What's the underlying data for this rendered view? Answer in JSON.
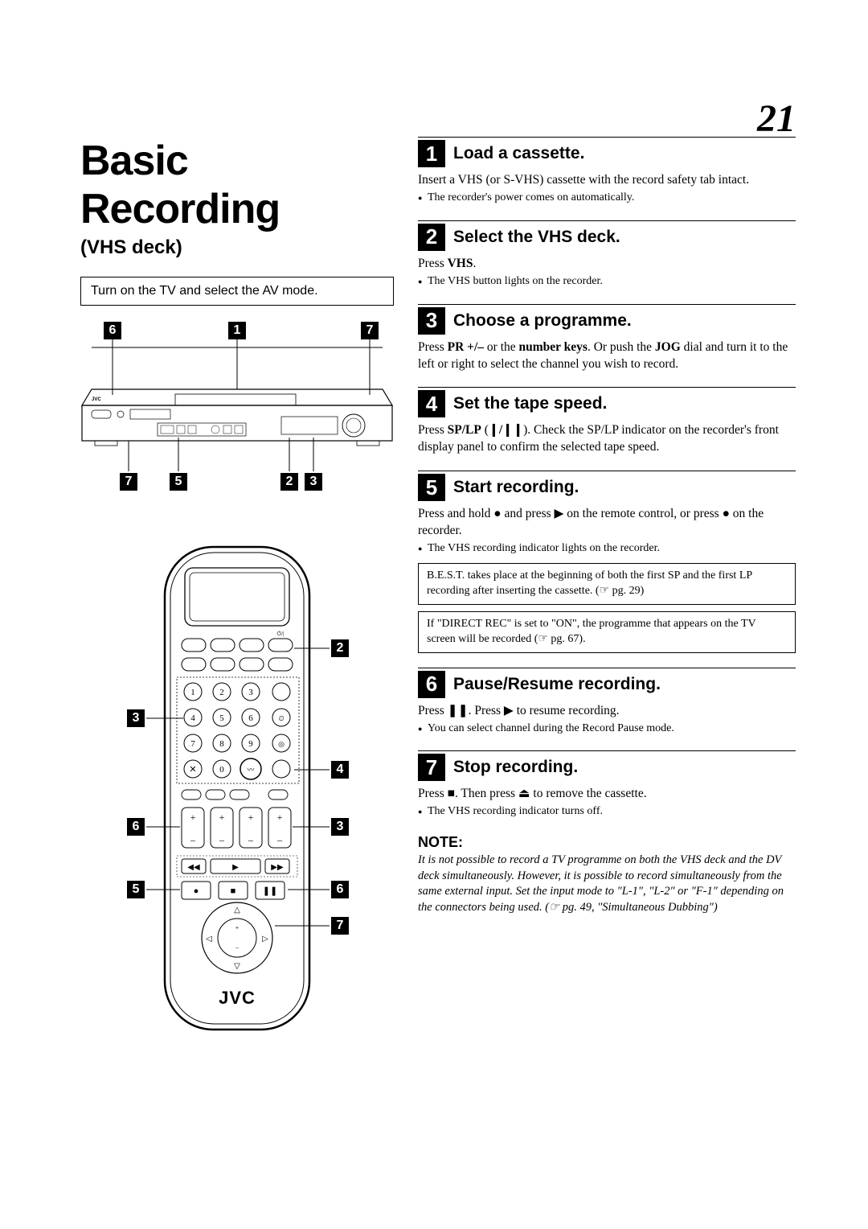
{
  "page_number": "21",
  "title": "Basic Recording",
  "subtitle": "(VHS deck)",
  "instruction_box": "Turn on the TV and select the AV mode.",
  "device_callouts_top": [
    "6",
    "1",
    "7"
  ],
  "device_callouts_bottom": [
    "7",
    "5",
    "2",
    "3"
  ],
  "remote_callouts_left": [
    "3",
    "6",
    "5"
  ],
  "remote_callouts_right": [
    "2",
    "4",
    "3",
    "6",
    "7"
  ],
  "brand_logo": "JVC",
  "steps": [
    {
      "num": "1",
      "title": "Load a cassette.",
      "body_html": "Insert a VHS (or S-VHS) cassette with the record safety tab intact.",
      "bullets": [
        "The recorder's power comes on automatically."
      ]
    },
    {
      "num": "2",
      "title": "Select the VHS deck.",
      "body_html": "Press <b>VHS</b>.",
      "bullets": [
        "The VHS button lights on the recorder."
      ]
    },
    {
      "num": "3",
      "title": "Choose a programme.",
      "body_html": "Press <b>PR +/–</b> or the <b>number keys</b>. Or push the <b>JOG</b> dial and turn it to the left or right to select the channel you wish to record.",
      "bullets": []
    },
    {
      "num": "4",
      "title": "Set the tape speed.",
      "body_html": "Press <b>SP/LP</b> (<b>❙/❙❙</b>). Check the SP/LP indicator on the recorder's front display panel to confirm the selected tape speed.",
      "bullets": []
    },
    {
      "num": "5",
      "title": "Start recording.",
      "body_html": "Press and hold ● and press ▶ on the remote control, or press ● on the recorder.",
      "bullets": [
        "The VHS recording indicator lights on the recorder."
      ],
      "boxes": [
        "B.E.S.T. takes place at the beginning of both the first SP and the first LP recording after inserting the cassette. (☞ pg. 29)",
        "If \"DIRECT REC\" is set to \"ON\", the programme that appears on the TV screen will be recorded (☞ pg. 67)."
      ]
    },
    {
      "num": "6",
      "title": "Pause/Resume recording.",
      "body_html": "Press ❚❚. Press ▶ to resume recording.",
      "bullets": [
        "You can select channel during the Record Pause mode."
      ]
    },
    {
      "num": "7",
      "title": "Stop recording.",
      "body_html": "Press ■. Then press ⏏ to remove the cassette.",
      "bullets": [
        "The VHS recording indicator turns off."
      ]
    }
  ],
  "note": {
    "title": "NOTE:",
    "body": "It is not possible to record a TV programme on both the VHS deck and the DV deck simultaneously. However, it is possible to record simultaneously from the same external input. Set the input mode to \"L-1\", \"L-2\" or \"F-1\" depending on the connectors being used. (☞ pg. 49, \"Simultaneous Dubbing\")"
  },
  "colors": {
    "text": "#000000",
    "background": "#ffffff",
    "callout_bg": "#000000",
    "callout_fg": "#ffffff"
  }
}
